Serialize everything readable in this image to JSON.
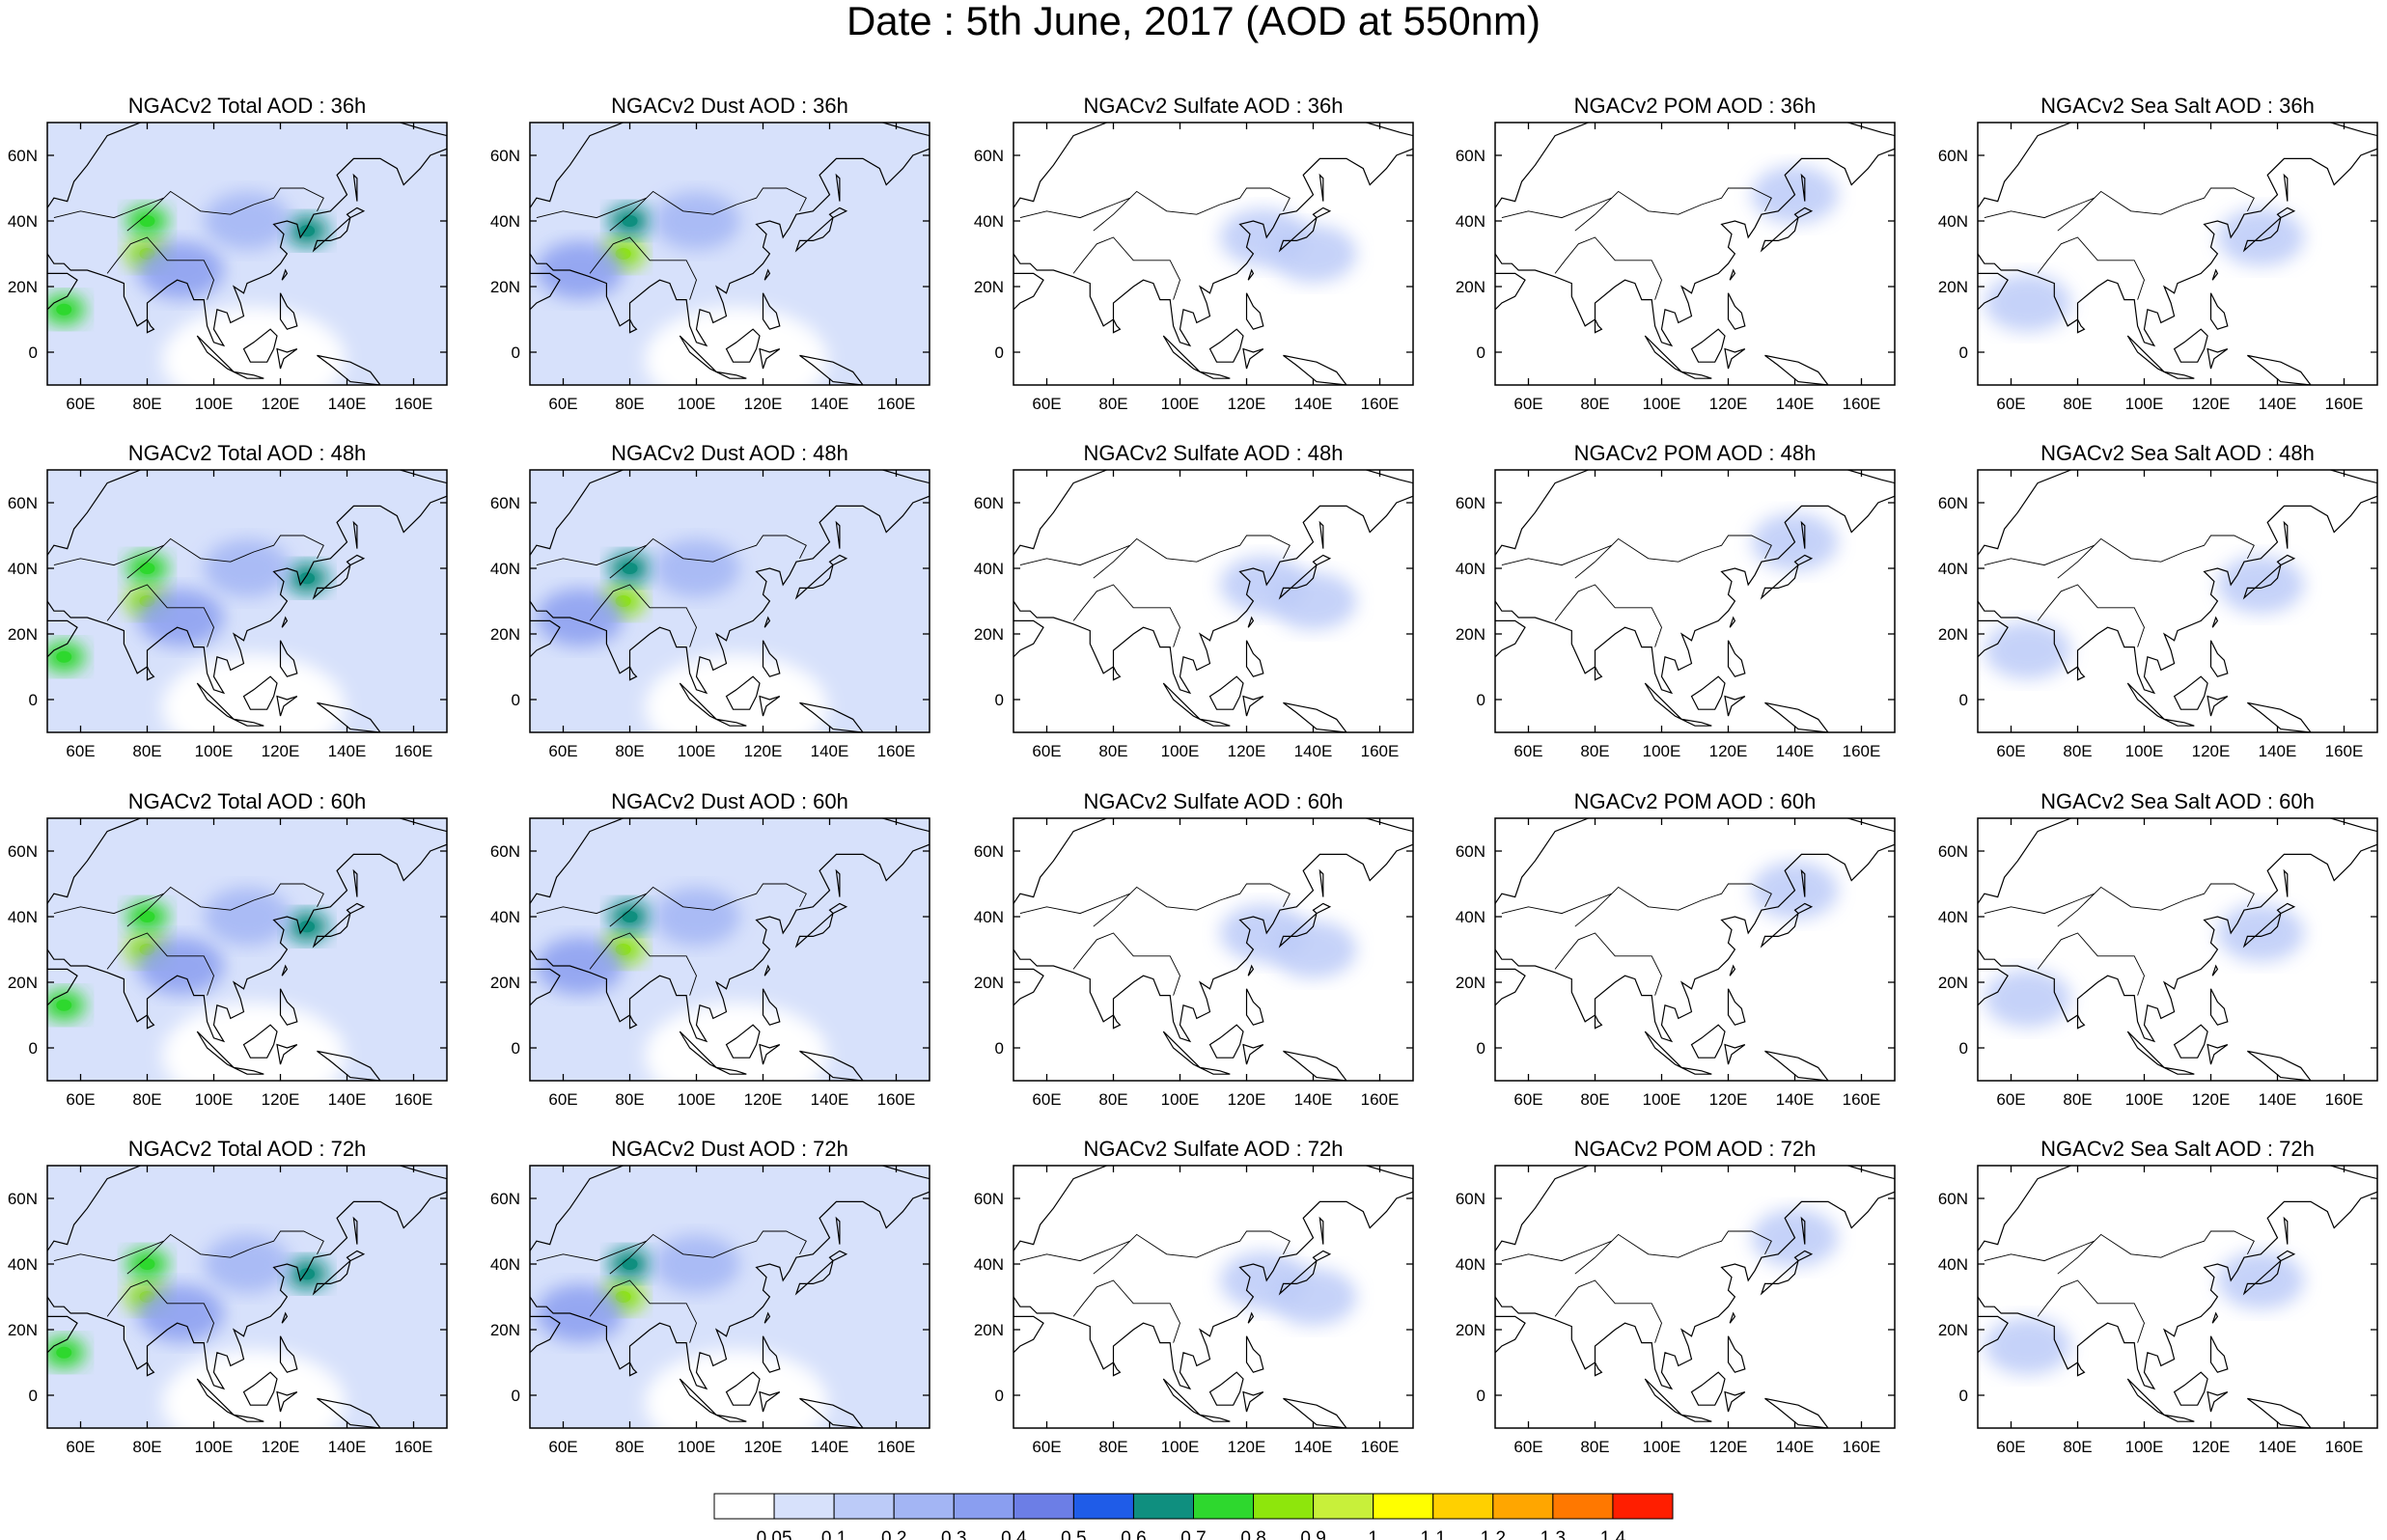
{
  "title": "Date : 5th June, 2017 (AOD at 550nm)",
  "chart_data": {
    "type": "heatmap",
    "description_units": "Aerosol Optical Depth at 550nm",
    "rows": [
      "36h",
      "48h",
      "60h",
      "72h"
    ],
    "columns": [
      "Total",
      "Dust",
      "Sulfate",
      "POM",
      "Sea Salt"
    ],
    "panel_titles": [
      [
        "NGACv2 Total AOD : 36h",
        "NGACv2 Dust AOD : 36h",
        "NGACv2 Sulfate AOD : 36h",
        "NGACv2 POM AOD : 36h",
        "NGACv2 Sea Salt AOD : 36h"
      ],
      [
        "NGACv2 Total AOD : 48h",
        "NGACv2 Dust AOD : 48h",
        "NGACv2 Sulfate AOD : 48h",
        "NGACv2 POM AOD : 48h",
        "NGACv2 Sea Salt AOD : 48h"
      ],
      [
        "NGACv2 Total AOD : 60h",
        "NGACv2 Dust AOD : 60h",
        "NGACv2 Sulfate AOD : 60h",
        "NGACv2 POM AOD : 60h",
        "NGACv2 Sea Salt AOD : 60h"
      ],
      [
        "NGACv2 Total AOD : 72h",
        "NGACv2 Dust AOD : 72h",
        "NGACv2 Sulfate AOD : 72h",
        "NGACv2 POM AOD : 72h",
        "NGACv2 Sea Salt  AOD : 72h"
      ]
    ],
    "x_ticks": [
      "60E",
      "80E",
      "100E",
      "120E",
      "140E",
      "160E"
    ],
    "x_tick_values": [
      60,
      80,
      100,
      120,
      140,
      160
    ],
    "y_ticks": [
      "60N",
      "40N",
      "20N",
      "0"
    ],
    "y_tick_values": [
      60,
      40,
      20,
      0
    ],
    "xlim": [
      50,
      170
    ],
    "ylim": [
      -10,
      70
    ],
    "colorbar": {
      "labels": [
        "0.05",
        "0.1",
        "0.2",
        "0.3",
        "0.4",
        "0.5",
        "0.6",
        "0.7",
        "0.8",
        "0.9",
        "1",
        "1.1",
        "1.2",
        "1.3",
        "1.4"
      ],
      "colors": [
        "#ffffff",
        "#d7e1fb",
        "#bccbf8",
        "#a3b5f4",
        "#8a9ef0",
        "#6c7ee6",
        "#1f5ce8",
        "#0f8f7f",
        "#2ed82e",
        "#8ee60c",
        "#c8f03a",
        "#ffff00",
        "#ffd000",
        "#ffa600",
        "#ff7800",
        "#ff1e00"
      ]
    },
    "fields": {
      "Total": [
        {
          "lon": 80,
          "lat": 30,
          "value": 0.8
        },
        {
          "lon": 80,
          "lat": 40,
          "value": 0.7
        },
        {
          "lon": 55,
          "lat": 13,
          "value": 0.7
        },
        {
          "lon": 128,
          "lat": 37,
          "value": 0.6
        },
        {
          "lon": 90,
          "lat": 25,
          "value": 0.3
        },
        {
          "lon": 110,
          "lat": 40,
          "value": 0.2
        }
      ],
      "Dust": [
        {
          "lon": 78,
          "lat": 30,
          "value": 0.8
        },
        {
          "lon": 80,
          "lat": 40,
          "value": 0.6
        },
        {
          "lon": 65,
          "lat": 25,
          "value": 0.3
        },
        {
          "lon": 100,
          "lat": 40,
          "value": 0.2
        }
      ],
      "Sulfate": [
        {
          "lon": 125,
          "lat": 35,
          "value": 0.15
        },
        {
          "lon": 140,
          "lat": 30,
          "value": 0.1
        }
      ],
      "POM": [
        {
          "lon": 140,
          "lat": 48,
          "value": 0.1
        }
      ],
      "Sea Salt": [
        {
          "lon": 65,
          "lat": 15,
          "value": 0.15
        },
        {
          "lon": 135,
          "lat": 35,
          "value": 0.1
        }
      ]
    }
  }
}
